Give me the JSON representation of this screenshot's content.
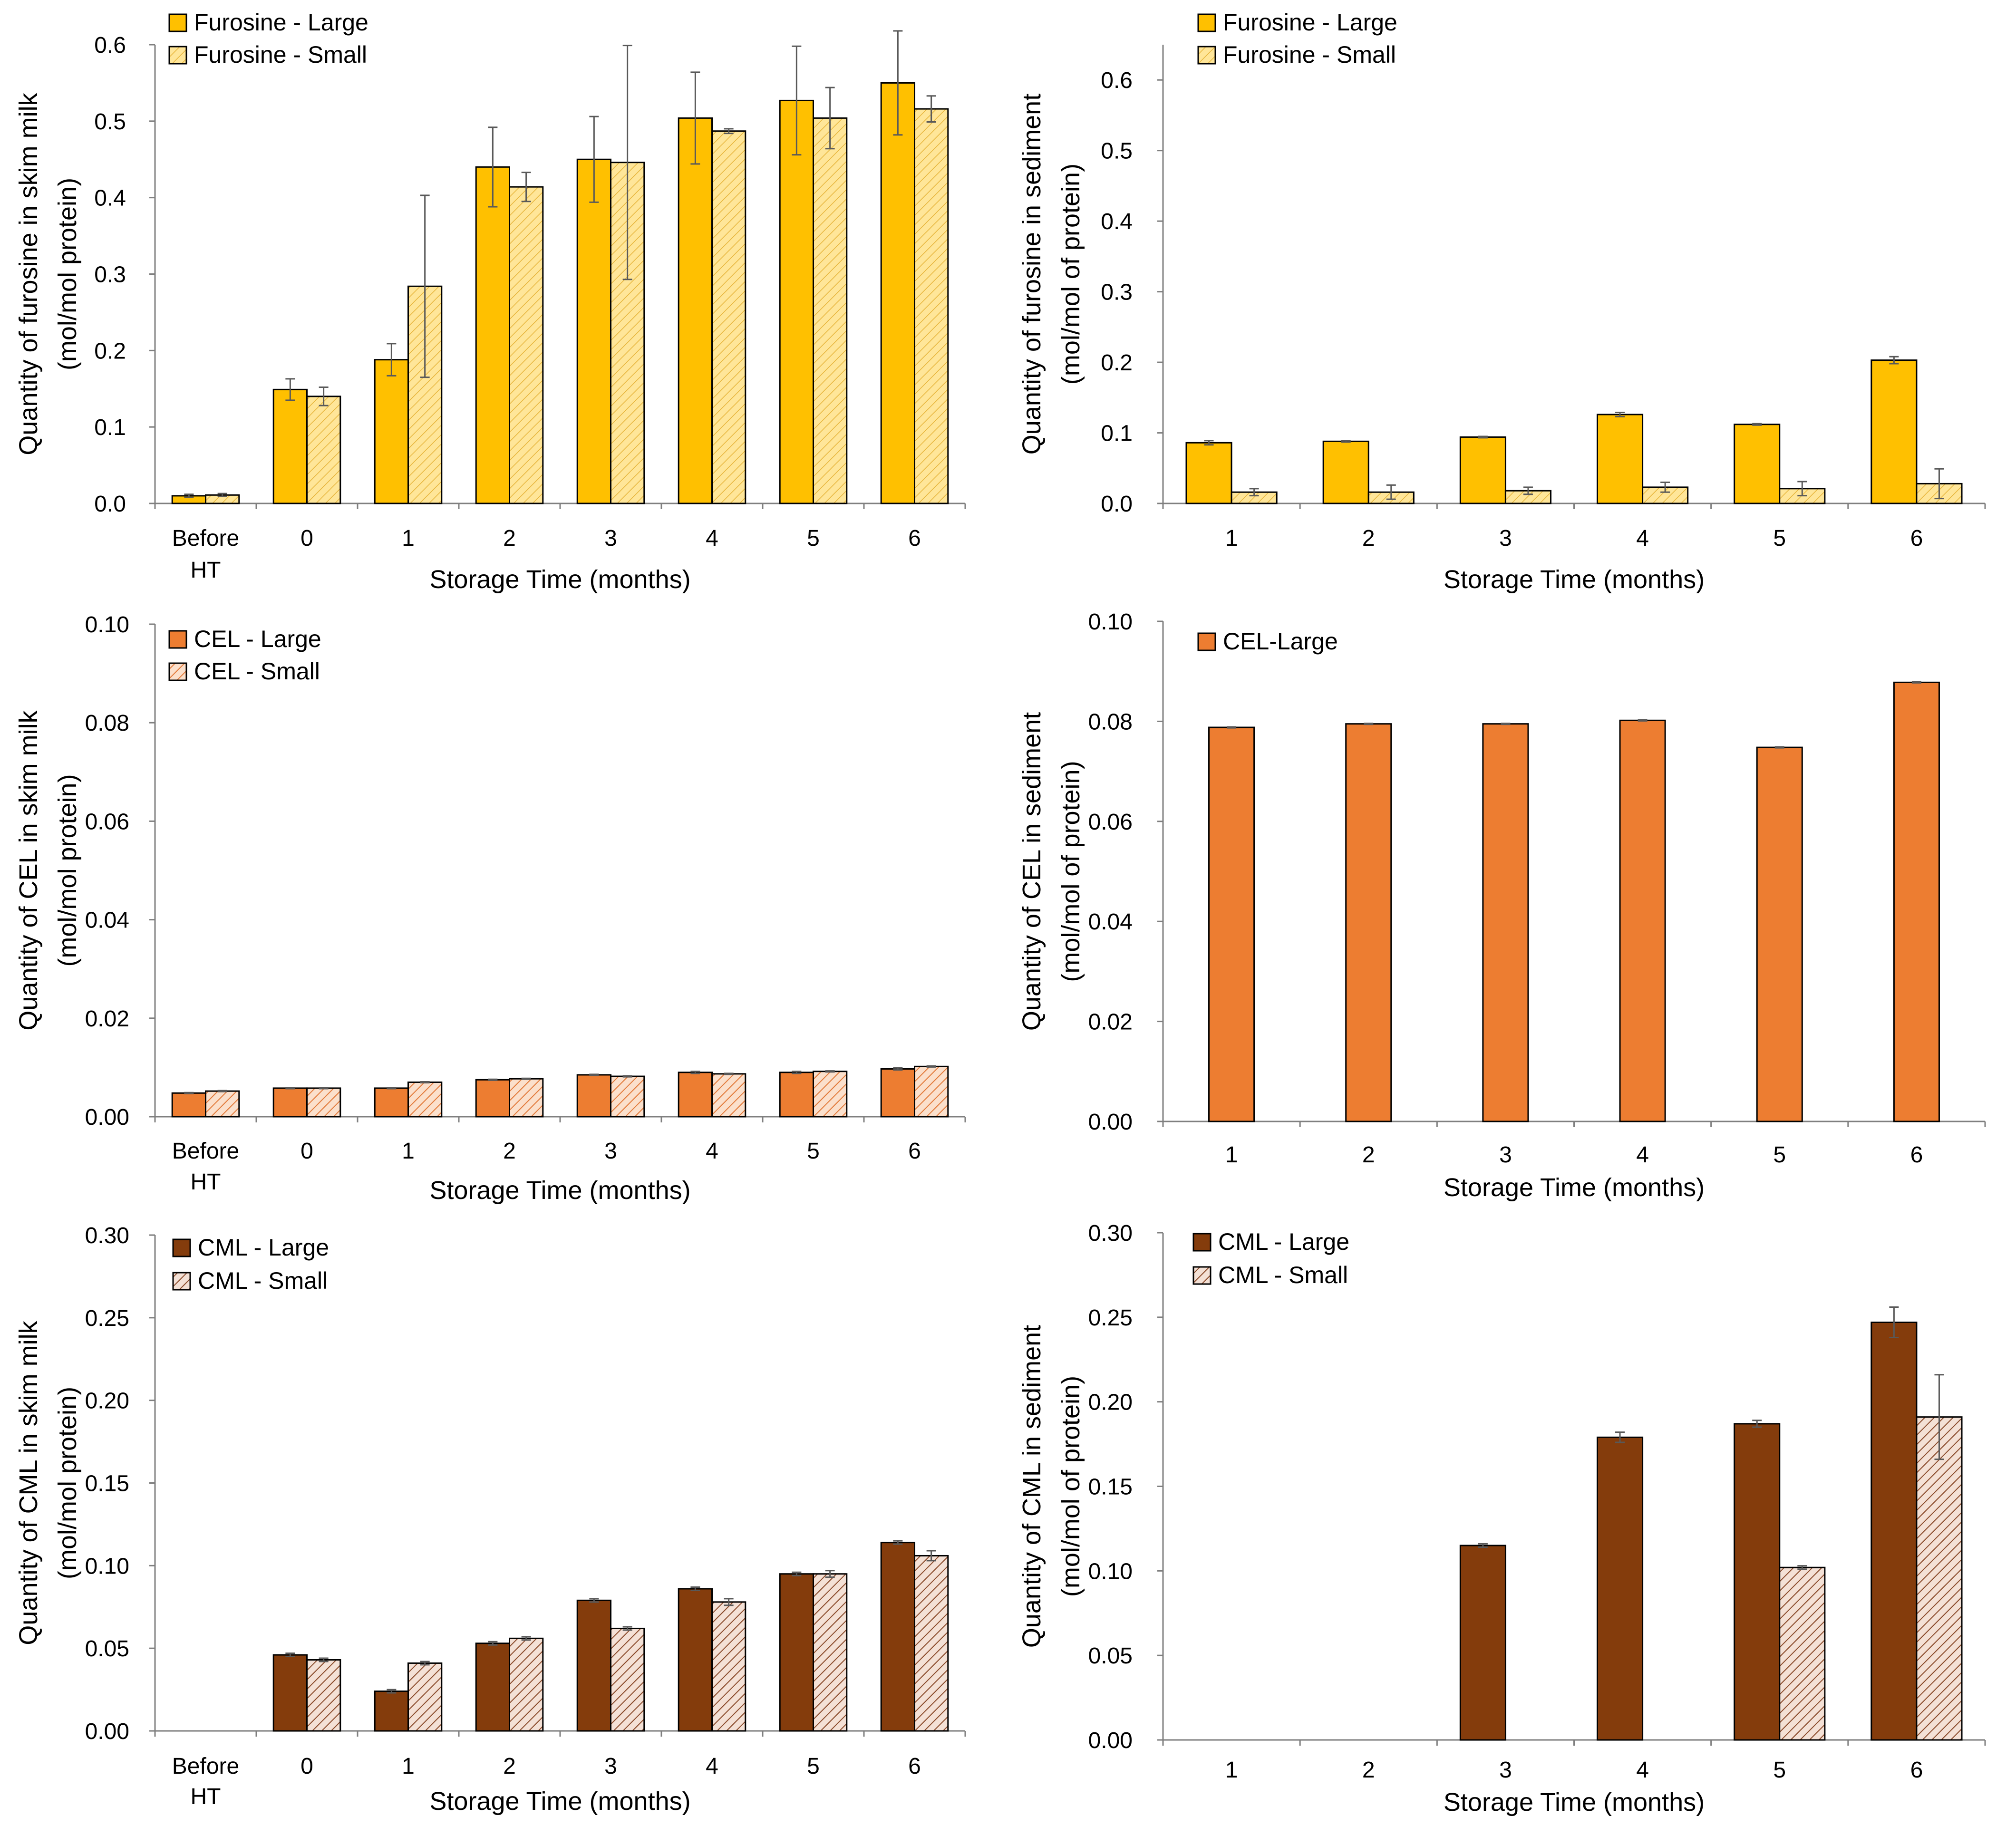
{
  "chart_data": [
    {
      "type": "bar",
      "panel": "top-left",
      "title": "",
      "xlabel": "Storage Time (months)",
      "ylabel_lines": [
        "Quantity of furosine in skim milk",
        "(mol/mol protein)"
      ],
      "ylim": [
        0,
        0.6
      ],
      "yticks": [
        "0.0",
        "0.1",
        "0.2",
        "0.3",
        "0.4",
        "0.5",
        "0.6"
      ],
      "categories": [
        "Before HT",
        "0",
        "1",
        "2",
        "3",
        "4",
        "5",
        "6"
      ],
      "category_lines": [
        [
          "Before",
          "HT"
        ],
        [
          "0"
        ],
        [
          "1"
        ],
        [
          "2"
        ],
        [
          "3"
        ],
        [
          "4"
        ],
        [
          "5"
        ],
        [
          "6"
        ]
      ],
      "legend_position": "top-left",
      "series": [
        {
          "name": "Furosine - Large",
          "color": "#FFC000",
          "pattern": "solid",
          "values": [
            0.01,
            0.149,
            0.188,
            0.44,
            0.45,
            0.504,
            0.527,
            0.55
          ],
          "errors": [
            0.002,
            0.014,
            0.021,
            0.052,
            0.056,
            0.06,
            0.071,
            0.068
          ]
        },
        {
          "name": "Furosine - Small",
          "color": "#FFE699",
          "pattern": "hatch",
          "values": [
            0.011,
            0.14,
            0.284,
            0.414,
            0.446,
            0.487,
            0.504,
            0.516
          ],
          "errors": [
            0.002,
            0.012,
            0.119,
            0.019,
            0.153,
            0.003,
            0.04,
            0.017
          ]
        }
      ]
    },
    {
      "type": "bar",
      "panel": "top-right",
      "title": "",
      "xlabel": "Storage Time (months)",
      "ylabel_lines": [
        "Quantity of furosine in sediment",
        "(mol/mol of protein)"
      ],
      "ylim": [
        0,
        0.65
      ],
      "yticks": [
        "0.0",
        "0.1",
        "0.2",
        "0.3",
        "0.4",
        "0.5",
        "0.6"
      ],
      "categories": [
        "1",
        "2",
        "3",
        "4",
        "5",
        "6"
      ],
      "category_lines": [
        [
          "1"
        ],
        [
          "2"
        ],
        [
          "3"
        ],
        [
          "4"
        ],
        [
          "5"
        ],
        [
          "6"
        ]
      ],
      "legend_position": "top-left",
      "series": [
        {
          "name": "Furosine - Large",
          "color": "#FFC000",
          "pattern": "solid",
          "values": [
            0.086,
            0.088,
            0.094,
            0.126,
            0.112,
            0.203
          ],
          "errors": [
            0.003,
            0.001,
            0.001,
            0.003,
            0.001,
            0.005
          ]
        },
        {
          "name": "Furosine - Small",
          "color": "#FFE699",
          "pattern": "hatch",
          "values": [
            0.016,
            0.016,
            0.018,
            0.023,
            0.021,
            0.028
          ],
          "errors": [
            0.005,
            0.01,
            0.005,
            0.007,
            0.01,
            0.021
          ]
        }
      ]
    },
    {
      "type": "bar",
      "panel": "middle-left",
      "title": "",
      "xlabel": "Storage Time (months)",
      "ylabel_lines": [
        "Quantity of CEL in skim milk",
        "(mol/mol protein)"
      ],
      "ylim": [
        0,
        0.1
      ],
      "yticks": [
        "0.00",
        "0.02",
        "0.04",
        "0.06",
        "0.08",
        "0.10"
      ],
      "categories": [
        "Before HT",
        "0",
        "1",
        "2",
        "3",
        "4",
        "5",
        "6"
      ],
      "category_lines": [
        [
          "Before",
          "HT"
        ],
        [
          "0"
        ],
        [
          "1"
        ],
        [
          "2"
        ],
        [
          "3"
        ],
        [
          "4"
        ],
        [
          "5"
        ],
        [
          "6"
        ]
      ],
      "legend_position": "top-left",
      "series": [
        {
          "name": "CEL - Large",
          "color": "#ED7D31",
          "pattern": "solid",
          "values": [
            0.0048,
            0.0058,
            0.0058,
            0.0075,
            0.0085,
            0.009,
            0.009,
            0.0097
          ],
          "errors": [
            0.0001,
            0.0001,
            0.0001,
            0.0001,
            0.0001,
            0.0002,
            0.0002,
            0.0002
          ]
        },
        {
          "name": "CEL - Small",
          "color": "#F8CBAD",
          "pattern": "hatch",
          "values": [
            0.0052,
            0.0058,
            0.007,
            0.0077,
            0.0082,
            0.0087,
            0.0092,
            0.0102
          ],
          "errors": [
            0.0001,
            0.0001,
            0.0001,
            0.0001,
            0.0001,
            0.0001,
            0.0001,
            0.0001
          ]
        }
      ]
    },
    {
      "type": "bar",
      "panel": "middle-right",
      "title": "",
      "xlabel": "Storage Time (months)",
      "ylabel_lines": [
        "Quantity of CEL in sediment",
        "(mol/mol of protein)"
      ],
      "ylim": [
        0,
        0.1
      ],
      "yticks": [
        "0.00",
        "0.02",
        "0.04",
        "0.06",
        "0.08",
        "0.10"
      ],
      "categories": [
        "1",
        "2",
        "3",
        "4",
        "5",
        "6"
      ],
      "category_lines": [
        [
          "1"
        ],
        [
          "2"
        ],
        [
          "3"
        ],
        [
          "4"
        ],
        [
          "5"
        ],
        [
          "6"
        ]
      ],
      "legend_position": "top-left",
      "series": [
        {
          "name": "CEL-Large",
          "color": "#ED7D31",
          "pattern": "solid",
          "values": [
            0.0788,
            0.0795,
            0.0795,
            0.0802,
            0.0748,
            0.0878
          ],
          "errors": [
            0.0001,
            0.0001,
            0.0001,
            0.0001,
            0.0001,
            0.0001
          ]
        }
      ]
    },
    {
      "type": "bar",
      "panel": "bottom-left",
      "title": "",
      "xlabel": "Storage Time (months)",
      "ylabel_lines": [
        "Quantity of CML in skim milk",
        "(mol/mol protein)"
      ],
      "ylim": [
        0,
        0.3
      ],
      "yticks": [
        "0.00",
        "0.05",
        "0.10",
        "0.15",
        "0.20",
        "0.25",
        "0.30"
      ],
      "categories": [
        "Before HT",
        "0",
        "1",
        "2",
        "3",
        "4",
        "5",
        "6"
      ],
      "category_lines": [
        [
          "Before",
          "HT"
        ],
        [
          "0"
        ],
        [
          "1"
        ],
        [
          "2"
        ],
        [
          "3"
        ],
        [
          "4"
        ],
        [
          "5"
        ],
        [
          "6"
        ]
      ],
      "legend_position": "top-left",
      "series": [
        {
          "name": "CML - Large",
          "color": "#843C0C",
          "pattern": "solid",
          "values": [
            0,
            0.046,
            0.024,
            0.053,
            0.079,
            0.086,
            0.095,
            0.114
          ],
          "errors": [
            0,
            0.001,
            0.001,
            0.001,
            0.001,
            0.001,
            0.001,
            0.001
          ]
        },
        {
          "name": "CML - Small",
          "color": "#F4D6C6",
          "pattern": "hatch-dark",
          "values": [
            0,
            0.043,
            0.041,
            0.056,
            0.062,
            0.078,
            0.095,
            0.106
          ],
          "errors": [
            0,
            0.001,
            0.001,
            0.001,
            0.001,
            0.002,
            0.002,
            0.003
          ]
        }
      ]
    },
    {
      "type": "bar",
      "panel": "bottom-right",
      "title": "",
      "xlabel": "Storage Time (months)",
      "ylabel_lines": [
        "Quantity of CML in sediment",
        "(mol/mol of protein)"
      ],
      "ylim": [
        0,
        0.3
      ],
      "yticks": [
        "0.00",
        "0.05",
        "0.10",
        "0.15",
        "0.20",
        "0.25",
        "0.30"
      ],
      "categories": [
        "1",
        "2",
        "3",
        "4",
        "5",
        "6"
      ],
      "category_lines": [
        [
          "1"
        ],
        [
          "2"
        ],
        [
          "3"
        ],
        [
          "4"
        ],
        [
          "5"
        ],
        [
          "6"
        ]
      ],
      "legend_position": "top-left",
      "series": [
        {
          "name": "CML - Large",
          "color": "#843C0C",
          "pattern": "solid",
          "values": [
            0,
            0,
            0.115,
            0.179,
            0.187,
            0.247
          ],
          "errors": [
            0,
            0,
            0.001,
            0.003,
            0.002,
            0.009
          ]
        },
        {
          "name": "CML - Small",
          "color": "#F4D6C6",
          "pattern": "hatch-dark",
          "values": [
            0,
            0,
            0,
            0,
            0.102,
            0.191
          ],
          "errors": [
            0,
            0,
            0,
            0,
            0.001,
            0.025
          ]
        }
      ]
    }
  ]
}
